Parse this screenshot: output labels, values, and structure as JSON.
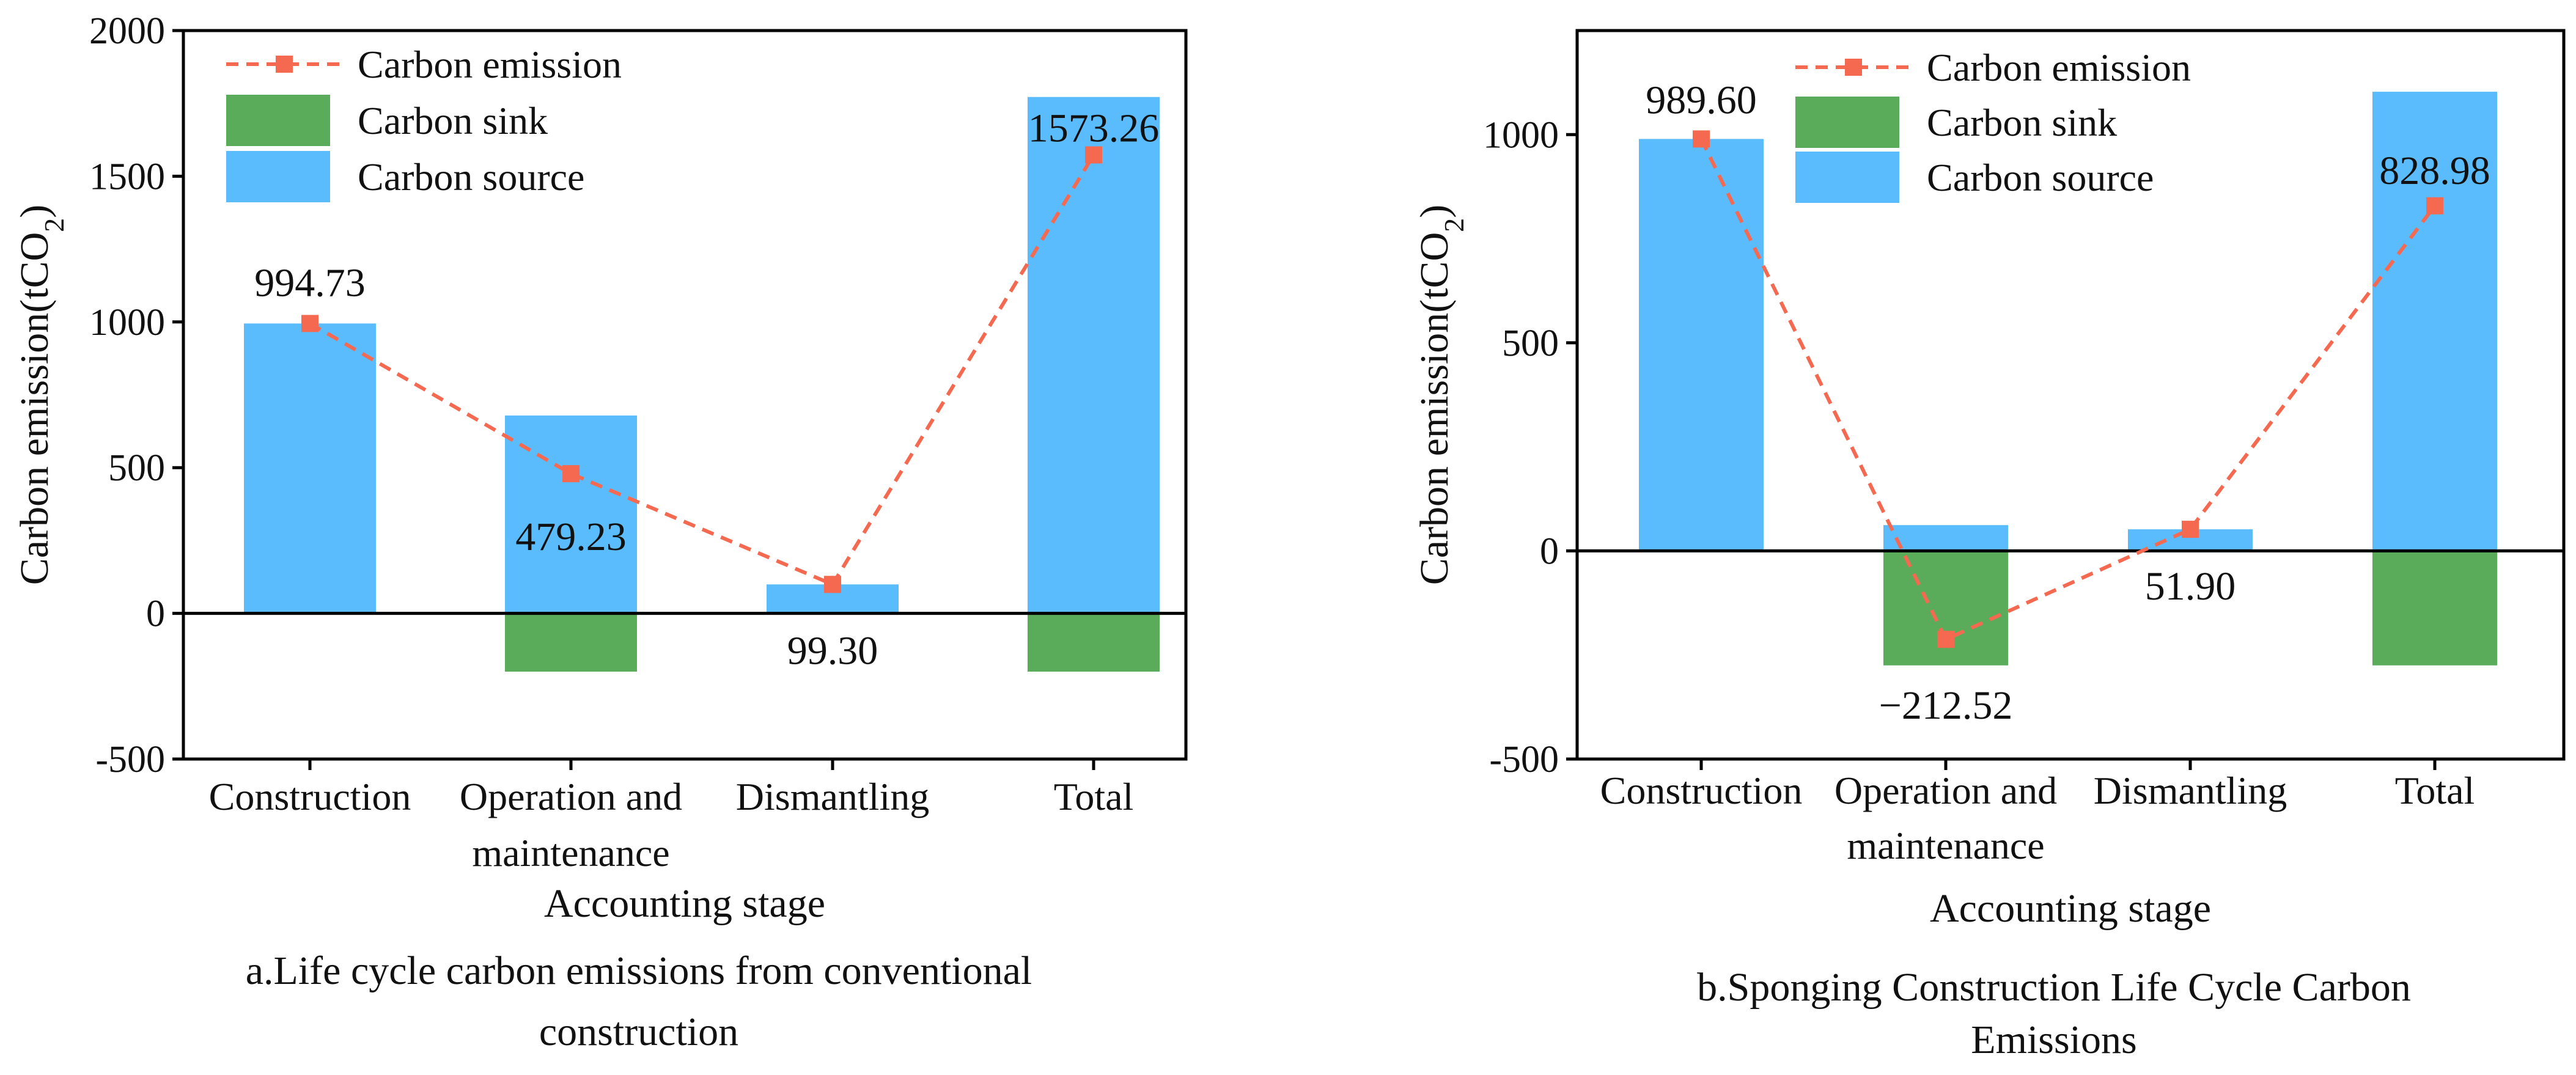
{
  "colors": {
    "source": "#5bbcfd",
    "sink": "#5aac5a",
    "emission": "#f4694f",
    "axis": "#000000"
  },
  "legend": {
    "emission": "Carbon emission",
    "sink": "Carbon sink",
    "source": "Carbon source"
  },
  "chart_data": [
    {
      "type": "bar",
      "caption": "a.Life cycle carbon emissions from conventional construction",
      "caption_lines": [
        "a.Life cycle carbon emissions from conventional",
        "construction"
      ],
      "xlabel": "Accounting stage",
      "ylabel": "Carbon emission(tCO2)",
      "ylim": [
        -500,
        2000
      ],
      "yticks": [
        {
          "value": 2000,
          "label": "2000"
        },
        {
          "value": 1500,
          "label": "1500"
        },
        {
          "value": 1000,
          "label": "1000"
        },
        {
          "value": 500,
          "label": "500"
        },
        {
          "value": 0,
          "label": "0"
        },
        {
          "value": -500,
          "label": "-500"
        }
      ],
      "categories": [
        "Construction",
        "Operation and maintenance",
        "Dismantling",
        "Total"
      ],
      "category_lines": [
        [
          "Construction"
        ],
        [
          "Operation and",
          "maintenance"
        ],
        [
          "Dismantling"
        ],
        [
          "Total"
        ]
      ],
      "series": [
        {
          "name": "Carbon source",
          "kind": "bar",
          "values": [
            994.73,
            679,
            99.3,
            1772
          ]
        },
        {
          "name": "Carbon sink",
          "kind": "bar",
          "values": [
            0,
            -200,
            0,
            -200
          ]
        },
        {
          "name": "Carbon emission",
          "kind": "line",
          "values": [
            994.73,
            479.23,
            99.3,
            1573.26
          ]
        }
      ],
      "data_labels": [
        "994.73",
        "479.23",
        "99.30",
        "1573.26"
      ]
    },
    {
      "type": "bar",
      "caption": "b.Sponging Construction Life Cycle Carbon Emissions",
      "caption_lines": [
        "b.Sponging Construction Life Cycle Carbon",
        "Emissions"
      ],
      "xlabel": "Accounting stage",
      "ylabel": "Carbon emission(tCO2)",
      "ylim": [
        -500,
        1250
      ],
      "yticks": [
        {
          "value": 1000,
          "label": "1000"
        },
        {
          "value": 500,
          "label": "500"
        },
        {
          "value": 0,
          "label": "0"
        },
        {
          "value": -500,
          "label": "-500"
        }
      ],
      "categories": [
        "Construction",
        "Operation and maintenance",
        "Dismantling",
        "Total"
      ],
      "category_lines": [
        [
          "Construction"
        ],
        [
          "Operation and",
          "maintenance"
        ],
        [
          "Dismantling"
        ],
        [
          "Total"
        ]
      ],
      "series": [
        {
          "name": "Carbon source",
          "kind": "bar",
          "values": [
            989.6,
            62,
            51.9,
            1103
          ]
        },
        {
          "name": "Carbon sink",
          "kind": "bar",
          "values": [
            0,
            -275,
            0,
            -275
          ]
        },
        {
          "name": "Carbon emission",
          "kind": "line",
          "values": [
            989.6,
            -212.52,
            51.9,
            828.98
          ]
        }
      ],
      "data_labels": [
        "989.60",
        "−212.52",
        "51.90",
        "828.98"
      ]
    }
  ]
}
